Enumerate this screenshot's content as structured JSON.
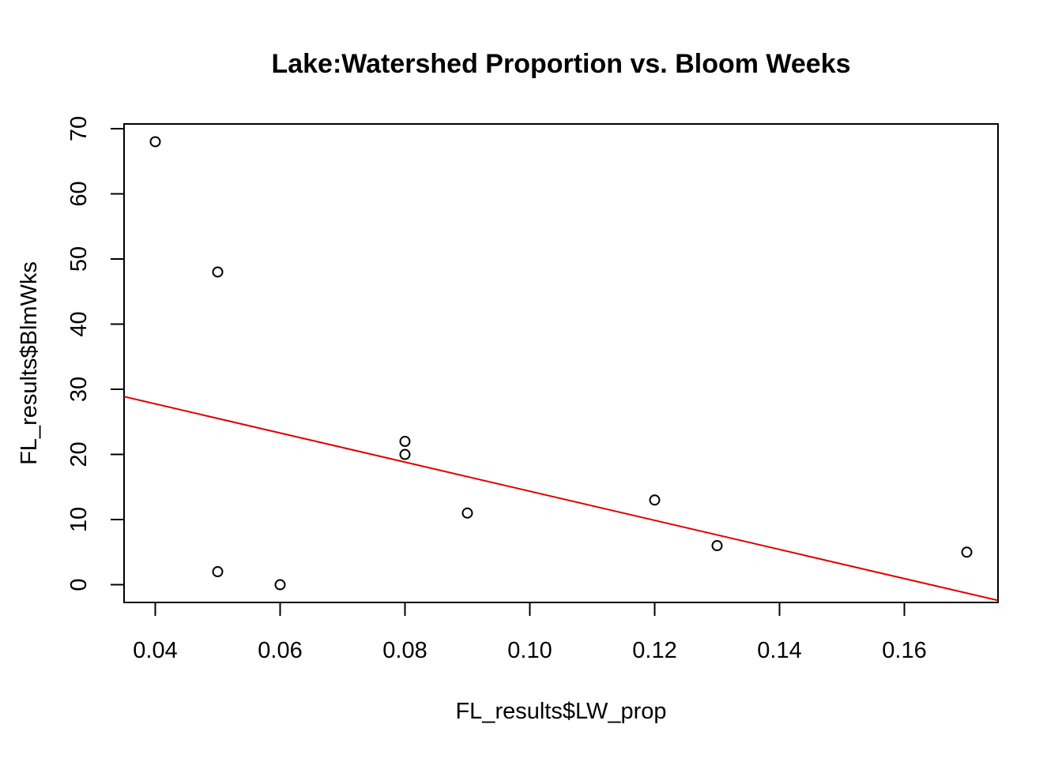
{
  "chart_data": {
    "type": "scatter",
    "title": "Lake:Watershed Proportion vs. Bloom Weeks",
    "xlabel": "FL_results$LW_prop",
    "ylabel": "FL_results$BlmWks",
    "xlim": [
      0.035,
      0.175
    ],
    "ylim": [
      -2.72,
      70.72
    ],
    "x_ticks": [
      0.04,
      0.06,
      0.08,
      0.1,
      0.12,
      0.14,
      0.16
    ],
    "x_tick_labels": [
      "0.04",
      "0.06",
      "0.08",
      "0.10",
      "0.12",
      "0.14",
      "0.16"
    ],
    "y_ticks": [
      0,
      10,
      20,
      30,
      40,
      50,
      60,
      70
    ],
    "y_tick_labels": [
      "0",
      "10",
      "20",
      "30",
      "40",
      "50",
      "60",
      "70"
    ],
    "points": [
      {
        "x": 0.04,
        "y": 68
      },
      {
        "x": 0.05,
        "y": 48
      },
      {
        "x": 0.05,
        "y": 2
      },
      {
        "x": 0.06,
        "y": 0
      },
      {
        "x": 0.08,
        "y": 22
      },
      {
        "x": 0.08,
        "y": 20
      },
      {
        "x": 0.09,
        "y": 11
      },
      {
        "x": 0.12,
        "y": 13
      },
      {
        "x": 0.13,
        "y": 6
      },
      {
        "x": 0.17,
        "y": 5
      }
    ],
    "regression_line": {
      "intercept": 36.7,
      "slope": -223.5
    },
    "point_color": "#000000",
    "line_color": "#e00000",
    "grid": false,
    "legend": "none"
  }
}
